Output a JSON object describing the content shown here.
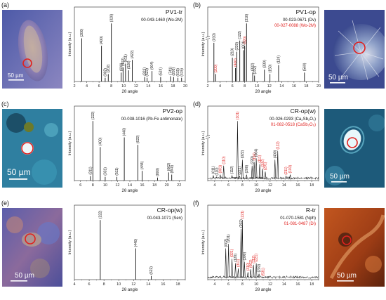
{
  "panel_letters": [
    "(a)",
    "(b)",
    "(c)",
    "(d)",
    "(e)",
    "(f)"
  ],
  "scale_label": "50 µm",
  "colors": {
    "black_series": "#111111",
    "red_series": "#e0211f",
    "marker": "#e0211f"
  },
  "images": [
    {
      "panel": "(a)",
      "description_icon": "micrograph-thumbnail",
      "side": "left"
    },
    {
      "panel": "(b)",
      "description_icon": "micrograph-thumbnail",
      "side": "right"
    },
    {
      "panel": "(c)",
      "description_icon": "micrograph-thumbnail",
      "side": "left"
    },
    {
      "panel": "(d)",
      "description_icon": "micrograph-thumbnail",
      "side": "right"
    },
    {
      "panel": "(e)",
      "description_icon": "micrograph-thumbnail",
      "side": "left"
    },
    {
      "panel": "(f)",
      "description_icon": "micrograph-thumbnail",
      "side": "right"
    }
  ],
  "chart_data": [
    {
      "panel": "(a)",
      "type": "bar",
      "title": "PV1-tr",
      "xlabel": "2θ angle",
      "ylabel": "Intensity (a.u.)",
      "xlim": [
        2,
        20
      ],
      "xticks": [
        2,
        4,
        6,
        8,
        10,
        12,
        14,
        16,
        18,
        20
      ],
      "legend": [
        {
          "text": "00-043-1460 (Wo-2M)",
          "color": "#111111"
        }
      ],
      "axis_break": false,
      "peaks": [
        {
          "x": 3.2,
          "y": 0.58,
          "label": "(200)",
          "color": "#111111"
        },
        {
          "x": 6.4,
          "y": 0.48,
          "label": "(400)",
          "color": "#111111"
        },
        {
          "x": 7.0,
          "y": 0.05,
          "label": "(002)",
          "color": "#111111"
        },
        {
          "x": 7.5,
          "y": 0.1,
          "label": "(202)",
          "color": "#111111"
        },
        {
          "x": 8.0,
          "y": 0.78,
          "label": "(320)",
          "color": "#111111"
        },
        {
          "x": 9.6,
          "y": 0.12,
          "label": "(600)",
          "color": "#111111"
        },
        {
          "x": 9.9,
          "y": 0.19,
          "label": "(402)",
          "color": "#111111"
        },
        {
          "x": 10.3,
          "y": 0.24,
          "label": "(611)",
          "color": "#111111"
        },
        {
          "x": 10.8,
          "y": 0.15,
          "label": "(520)",
          "color": "#111111"
        },
        {
          "x": 11.4,
          "y": 0.29,
          "label": "(422)",
          "color": "#111111"
        },
        {
          "x": 13.4,
          "y": 0.06,
          "label": "(323)",
          "color": "#111111"
        },
        {
          "x": 13.8,
          "y": 0.05,
          "label": "(523)",
          "color": "#111111"
        },
        {
          "x": 14.6,
          "y": 0.14,
          "label": "(004)",
          "color": "#111111"
        },
        {
          "x": 16.0,
          "y": 0.06,
          "label": "(524)",
          "color": "#111111"
        },
        {
          "x": 17.6,
          "y": 0.07,
          "label": "(741)",
          "color": "#111111"
        },
        {
          "x": 18.1,
          "y": 0.06,
          "label": "(205)",
          "color": "#111111"
        },
        {
          "x": 18.8,
          "y": 0.05,
          "label": "(615)",
          "color": "#111111"
        },
        {
          "x": 19.4,
          "y": 0.05,
          "label": "(415)",
          "color": "#111111"
        }
      ]
    },
    {
      "panel": "(b)",
      "type": "bar",
      "title": "PV1-op",
      "xlabel": "2θ angle",
      "ylabel": "Intensity (a.u.)",
      "xlim": [
        2,
        20
      ],
      "xticks": [
        2,
        4,
        6,
        8,
        10,
        12,
        14,
        16,
        18,
        20
      ],
      "legend": [
        {
          "text": "00-023-0671 (Dv)",
          "color": "#111111"
        },
        {
          "text": "00-027-0088 (Wo-2M)",
          "color": "#e0211f"
        }
      ],
      "axis_break": true,
      "peaks": [
        {
          "x": 3.0,
          "y": 0.52,
          "label": "(010)",
          "color": "#111111"
        },
        {
          "x": 3.3,
          "y": 0.1,
          "label": "(200)",
          "color": "#e0211f"
        },
        {
          "x": 6.0,
          "y": 0.32,
          "label": "(210)",
          "color": "#111111"
        },
        {
          "x": 6.5,
          "y": 0.18,
          "label": "(400)",
          "color": "#e0211f"
        },
        {
          "x": 6.7,
          "y": 0.4,
          "label": "(220)",
          "color": "#111111"
        },
        {
          "x": 7.2,
          "y": 0.55,
          "label": "(122)",
          "color": "#111111"
        },
        {
          "x": 7.8,
          "y": 0.42,
          "label": "(001)",
          "color": "#111111"
        },
        {
          "x": 8.0,
          "y": 0.48,
          "label": "(320)",
          "color": "#e0211f"
        },
        {
          "x": 8.3,
          "y": 0.78,
          "label": "(310)",
          "color": "#111111"
        },
        {
          "x": 9.3,
          "y": 0.12,
          "label": "(332)",
          "color": "#111111"
        },
        {
          "x": 9.6,
          "y": 0.08,
          "label": "(232)",
          "color": "#111111"
        },
        {
          "x": 11.2,
          "y": 0.16,
          "label": "(330)",
          "color": "#111111"
        },
        {
          "x": 12.1,
          "y": 0.1,
          "label": "(150)",
          "color": "#111111"
        },
        {
          "x": 13.5,
          "y": 0.22,
          "label": "(124)",
          "color": "#111111"
        },
        {
          "x": 17.7,
          "y": 0.12,
          "label": "(560)",
          "color": "#111111"
        }
      ]
    },
    {
      "panel": "(c)",
      "type": "bar",
      "title": "PV2-op",
      "xlabel": "2θ angle",
      "ylabel": "Intensity (a.u.)",
      "xlim": [
        5,
        23
      ],
      "xticks": [
        6,
        8,
        10,
        12,
        14,
        16,
        18,
        20,
        22
      ],
      "legend": [
        {
          "text": "00-038-1016 (Pb-Fe antimonate)",
          "color": "#111111"
        }
      ],
      "axis_break": false,
      "peaks": [
        {
          "x": 7.6,
          "y": 0.06,
          "label": "(311)",
          "color": "#111111"
        },
        {
          "x": 8.0,
          "y": 0.8,
          "label": "(222)",
          "color": "#111111"
        },
        {
          "x": 9.2,
          "y": 0.45,
          "label": "(400)",
          "color": "#111111"
        },
        {
          "x": 10.0,
          "y": 0.05,
          "label": "(331)",
          "color": "#111111"
        },
        {
          "x": 11.9,
          "y": 0.05,
          "label": "(511)",
          "color": "#111111"
        },
        {
          "x": 13.1,
          "y": 0.58,
          "label": "(440)",
          "color": "#111111"
        },
        {
          "x": 15.3,
          "y": 0.48,
          "label": "(622)",
          "color": "#111111"
        },
        {
          "x": 16.0,
          "y": 0.13,
          "label": "(444)",
          "color": "#111111"
        },
        {
          "x": 18.5,
          "y": 0.04,
          "label": "(800)",
          "color": "#111111"
        },
        {
          "x": 20.3,
          "y": 0.11,
          "label": "(662)",
          "color": "#111111"
        },
        {
          "x": 20.8,
          "y": 0.08,
          "label": "(840)",
          "color": "#111111"
        }
      ]
    },
    {
      "panel": "(d)",
      "type": "line",
      "title": "CR-op(w)",
      "xlabel": "2θ angle",
      "ylabel": "Intensity (a.u.)",
      "xlim": [
        3,
        19
      ],
      "xticks": [
        4,
        6,
        8,
        10,
        12,
        14,
        16,
        18
      ],
      "legend": [
        {
          "text": "00-026-0293 (Ca₂Sb₂O₇)",
          "color": "#111111"
        },
        {
          "text": "01-082-0518 (CaSb₂O₆)",
          "color": "#e0211f"
        }
      ],
      "axis_break": true,
      "peaks": [
        {
          "x": 3.8,
          "y": 0.07,
          "label": "(011)",
          "color": "#111111"
        },
        {
          "x": 4.3,
          "y": 0.05,
          "label": "(110)",
          "color": "#111111"
        },
        {
          "x": 4.8,
          "y": 0.08,
          "label": "(001)",
          "color": "#e0211f"
        },
        {
          "x": 5.3,
          "y": 0.2,
          "label": "(110)",
          "color": "#e0211f"
        },
        {
          "x": 6.5,
          "y": 0.07,
          "label": "(112)",
          "color": "#111111"
        },
        {
          "x": 7.3,
          "y": 0.8,
          "label": "(101)",
          "color": "#e0211f"
        },
        {
          "x": 7.6,
          "y": 0.06,
          "label": "(221)",
          "color": "#111111"
        },
        {
          "x": 8.0,
          "y": 0.28,
          "label": "(022)",
          "color": "#111111"
        },
        {
          "x": 8.6,
          "y": 0.08,
          "label": "(200)",
          "color": "#111111"
        },
        {
          "x": 9.4,
          "y": 0.2,
          "label": "(220)",
          "color": "#111111"
        },
        {
          "x": 9.7,
          "y": 0.25,
          "label": "(110)",
          "color": "#e0211f"
        },
        {
          "x": 10.0,
          "y": 0.3,
          "label": "(004)",
          "color": "#111111"
        },
        {
          "x": 10.5,
          "y": 0.22,
          "label": "(111)",
          "color": "#e0211f"
        },
        {
          "x": 10.9,
          "y": 0.16,
          "label": "(102)",
          "color": "#e0211f"
        },
        {
          "x": 11.3,
          "y": 0.12,
          "label": "(201)",
          "color": "#e0211f"
        },
        {
          "x": 12.7,
          "y": 0.28,
          "label": "(400)",
          "color": "#111111"
        },
        {
          "x": 13.1,
          "y": 0.4,
          "label": "(112)",
          "color": "#e0211f"
        },
        {
          "x": 14.3,
          "y": 0.06,
          "label": "(211)",
          "color": "#e0211f"
        },
        {
          "x": 14.9,
          "y": 0.08,
          "label": "(103)",
          "color": "#e0211f"
        }
      ]
    },
    {
      "panel": "(e)",
      "type": "bar",
      "title": "CR-op(w)",
      "xlabel": "2θ angle",
      "ylabel": "Intensity (a.u.)",
      "xlim": [
        4,
        19
      ],
      "xticks": [
        4,
        6,
        8,
        10,
        12,
        14,
        16,
        18
      ],
      "legend": [
        {
          "text": "00-043-1071 (Sen)",
          "color": "#111111"
        }
      ],
      "axis_break": false,
      "peaks": [
        {
          "x": 7.5,
          "y": 0.8,
          "label": "(222)",
          "color": "#111111"
        },
        {
          "x": 12.3,
          "y": 0.42,
          "label": "(440)",
          "color": "#111111"
        },
        {
          "x": 14.4,
          "y": 0.05,
          "label": "(622)",
          "color": "#111111"
        }
      ]
    },
    {
      "panel": "(f)",
      "type": "line",
      "title": "R-tr",
      "xlabel": "2θ angle",
      "ylabel": "Intensity (a.u.)",
      "xlim": [
        3,
        19
      ],
      "xticks": [
        4,
        6,
        8,
        10,
        12,
        14,
        16,
        18
      ],
      "legend": [
        {
          "text": "01-070-1581 (Nph)",
          "color": "#111111"
        },
        {
          "text": "01-081-0487 (Di)",
          "color": "#e0211f"
        }
      ],
      "axis_break": false,
      "peaks": [
        {
          "x": 5.6,
          "y": 0.42,
          "label": "(002)",
          "color": "#111111"
        },
        {
          "x": 6.0,
          "y": 0.48,
          "label": "(201)",
          "color": "#111111"
        },
        {
          "x": 6.5,
          "y": 0.28,
          "label": "(021)",
          "color": "#e0211f"
        },
        {
          "x": 7.0,
          "y": 0.22,
          "label": "(120)",
          "color": "#111111"
        },
        {
          "x": 7.4,
          "y": 0.15,
          "label": "(311)",
          "color": "#e0211f"
        },
        {
          "x": 7.8,
          "y": 0.68,
          "label": "(202)",
          "color": "#111111"
        },
        {
          "x": 8.0,
          "y": 0.8,
          "label": "(221)",
          "color": "#e0211f"
        },
        {
          "x": 8.3,
          "y": 0.24,
          "label": "(300)",
          "color": "#111111"
        },
        {
          "x": 8.8,
          "y": 0.1,
          "label": "(310)",
          "color": "#e0211f"
        },
        {
          "x": 9.2,
          "y": 0.14,
          "label": "(002)",
          "color": "#e0211f"
        },
        {
          "x": 9.6,
          "y": 0.2,
          "label": "(112)",
          "color": "#e0211f"
        },
        {
          "x": 10.0,
          "y": 0.22,
          "label": "(221)",
          "color": "#e0211f"
        },
        {
          "x": 10.4,
          "y": 0.08,
          "label": "(203)",
          "color": "#111111"
        },
        {
          "x": 11.0,
          "y": 0.03,
          "label": "(531)",
          "color": "#e0211f"
        }
      ]
    }
  ]
}
